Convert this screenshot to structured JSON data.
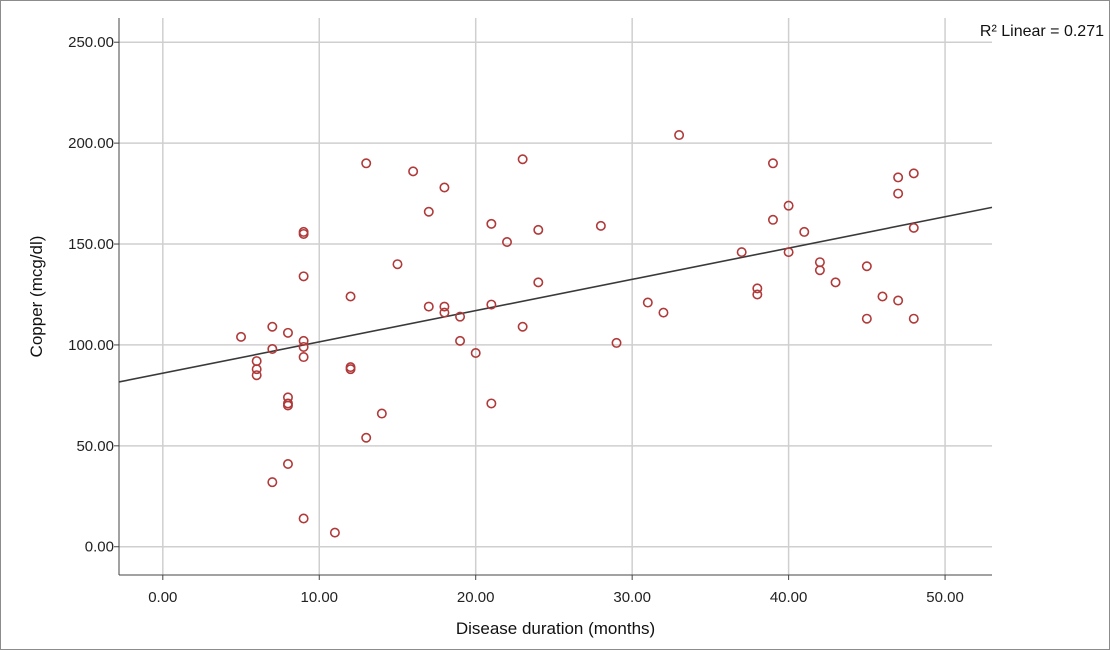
{
  "chart_data": {
    "type": "scatter",
    "xlabel": "Disease duration (months)",
    "ylabel": "Copper (mcg/dl)",
    "xlim": [
      -2.8,
      53
    ],
    "ylim": [
      -14,
      262
    ],
    "x_ticks": [
      0,
      10,
      20,
      30,
      40,
      50
    ],
    "y_ticks": [
      0,
      50,
      100,
      150,
      200,
      250
    ],
    "x_tick_labels": [
      "0.00",
      "10.00",
      "20.00",
      "30.00",
      "40.00",
      "50.00"
    ],
    "y_tick_labels": [
      "0.00",
      "50.00",
      "100.00",
      "150.00",
      "200.00",
      "250.00"
    ],
    "grid": true,
    "marker_color": "#b03a3a",
    "fit_line_color": "#3a3a3a",
    "fit_line": {
      "intercept": 86,
      "slope": 1.55,
      "label": "R² Linear = 0.271"
    },
    "points": [
      {
        "x": 5,
        "y": 104
      },
      {
        "x": 6,
        "y": 92
      },
      {
        "x": 6,
        "y": 88
      },
      {
        "x": 6,
        "y": 85
      },
      {
        "x": 7,
        "y": 109
      },
      {
        "x": 7,
        "y": 98
      },
      {
        "x": 7,
        "y": 32
      },
      {
        "x": 8,
        "y": 106
      },
      {
        "x": 8,
        "y": 74
      },
      {
        "x": 8,
        "y": 71
      },
      {
        "x": 8,
        "y": 70
      },
      {
        "x": 8,
        "y": 41
      },
      {
        "x": 9,
        "y": 156
      },
      {
        "x": 9,
        "y": 155
      },
      {
        "x": 9,
        "y": 134
      },
      {
        "x": 9,
        "y": 102
      },
      {
        "x": 9,
        "y": 99
      },
      {
        "x": 9,
        "y": 94
      },
      {
        "x": 9,
        "y": 14
      },
      {
        "x": 11,
        "y": 7
      },
      {
        "x": 12,
        "y": 124
      },
      {
        "x": 12,
        "y": 89
      },
      {
        "x": 12,
        "y": 88
      },
      {
        "x": 13,
        "y": 190
      },
      {
        "x": 13,
        "y": 54
      },
      {
        "x": 14,
        "y": 66
      },
      {
        "x": 15,
        "y": 140
      },
      {
        "x": 16,
        "y": 186
      },
      {
        "x": 17,
        "y": 166
      },
      {
        "x": 17,
        "y": 119
      },
      {
        "x": 18,
        "y": 178
      },
      {
        "x": 18,
        "y": 119
      },
      {
        "x": 18,
        "y": 116
      },
      {
        "x": 19,
        "y": 114
      },
      {
        "x": 19,
        "y": 102
      },
      {
        "x": 20,
        "y": 96
      },
      {
        "x": 21,
        "y": 160
      },
      {
        "x": 21,
        "y": 120
      },
      {
        "x": 21,
        "y": 71
      },
      {
        "x": 22,
        "y": 151
      },
      {
        "x": 23,
        "y": 192
      },
      {
        "x": 23,
        "y": 109
      },
      {
        "x": 24,
        "y": 157
      },
      {
        "x": 24,
        "y": 131
      },
      {
        "x": 28,
        "y": 159
      },
      {
        "x": 29,
        "y": 101
      },
      {
        "x": 31,
        "y": 121
      },
      {
        "x": 32,
        "y": 116
      },
      {
        "x": 33,
        "y": 204
      },
      {
        "x": 37,
        "y": 146
      },
      {
        "x": 38,
        "y": 128
      },
      {
        "x": 38,
        "y": 125
      },
      {
        "x": 39,
        "y": 190
      },
      {
        "x": 39,
        "y": 162
      },
      {
        "x": 40,
        "y": 169
      },
      {
        "x": 40,
        "y": 146
      },
      {
        "x": 41,
        "y": 156
      },
      {
        "x": 42,
        "y": 141
      },
      {
        "x": 42,
        "y": 137
      },
      {
        "x": 43,
        "y": 131
      },
      {
        "x": 45,
        "y": 139
      },
      {
        "x": 45,
        "y": 113
      },
      {
        "x": 46,
        "y": 124
      },
      {
        "x": 47,
        "y": 183
      },
      {
        "x": 47,
        "y": 175
      },
      {
        "x": 47,
        "y": 122
      },
      {
        "x": 48,
        "y": 185
      },
      {
        "x": 48,
        "y": 158
      },
      {
        "x": 48,
        "y": 113
      }
    ]
  }
}
